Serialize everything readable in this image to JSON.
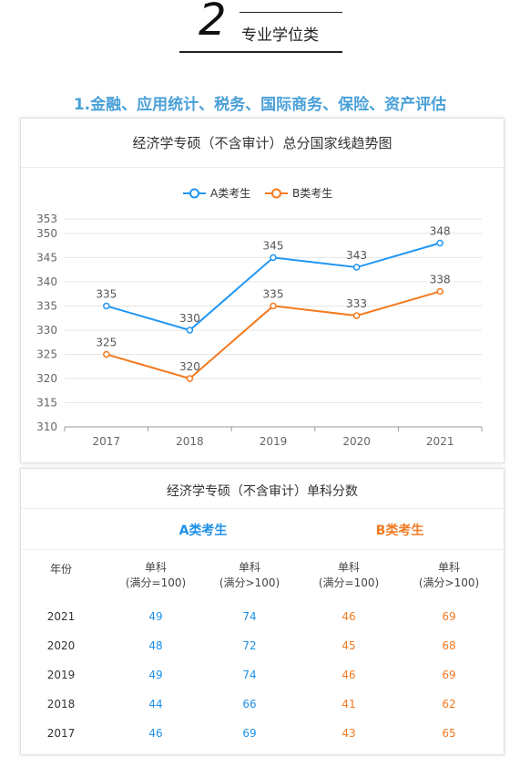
{
  "header": {
    "number": "2",
    "section_title": "专业学位类"
  },
  "subheading": "1.金融、应用统计、税务、国际商务、保险、资产评估",
  "chart_data": {
    "type": "line",
    "title": "经济学专硕（不含审计）总分国家线趋势图",
    "categories": [
      "2017",
      "2018",
      "2019",
      "2020",
      "2021"
    ],
    "series": [
      {
        "name": "A类考生",
        "values": [
          335,
          330,
          345,
          343,
          348
        ],
        "color": "#2196f3"
      },
      {
        "name": "B类考生",
        "values": [
          325,
          320,
          335,
          333,
          338
        ],
        "color": "#f47a20"
      }
    ],
    "yticks": [
      310,
      315,
      320,
      325,
      330,
      335,
      340,
      345,
      350,
      353
    ],
    "ylim": [
      310,
      353
    ],
    "legend_position": "top-center",
    "grid": true
  },
  "table": {
    "title": "经济学专硕（不含审计）单科分数",
    "group_a": "A类考生",
    "group_b": "B类考生",
    "col_year": "年份",
    "col_single": "单科",
    "col_full100": "(满分=100)",
    "col_full_gt100": "(满分>100)",
    "rows": [
      {
        "year": "2021",
        "a100": "49",
        "a_gt": "74",
        "b100": "46",
        "b_gt": "69"
      },
      {
        "year": "2020",
        "a100": "48",
        "a_gt": "72",
        "b100": "45",
        "b_gt": "68"
      },
      {
        "year": "2019",
        "a100": "49",
        "a_gt": "74",
        "b100": "46",
        "b_gt": "69"
      },
      {
        "year": "2018",
        "a100": "44",
        "a_gt": "66",
        "b100": "41",
        "b_gt": "62"
      },
      {
        "year": "2017",
        "a100": "46",
        "a_gt": "69",
        "b100": "43",
        "b_gt": "65"
      }
    ]
  }
}
